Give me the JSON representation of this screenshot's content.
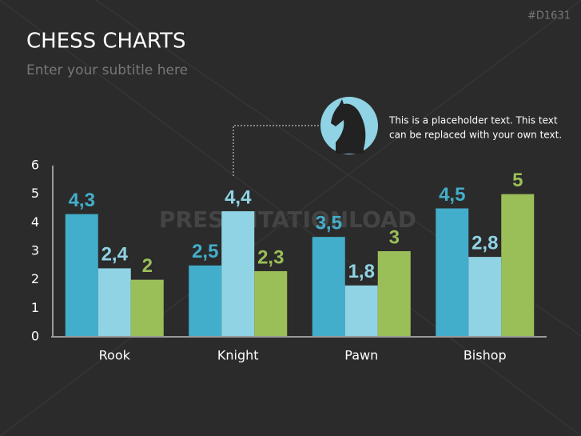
{
  "slide_code": "#D1631",
  "watermark": "PRESENTATIONLOAD",
  "chart_data": {
    "type": "bar",
    "title": "CHESS CHARTS",
    "subtitle": "Enter your subtitle here",
    "annotation": [
      "This is a placeholder text. This text",
      "can be replaced with your own text."
    ],
    "categories": [
      "Rook",
      "Knight",
      "Pawn",
      "Bishop"
    ],
    "series": [
      {
        "color": "#43aecb",
        "values": [
          4.3,
          2.5,
          3.5,
          4.5
        ],
        "value_labels": [
          "4,3",
          "2,5",
          "3,5",
          "4,5"
        ]
      },
      {
        "color": "#8fd3e4",
        "values": [
          2.4,
          4.4,
          1.8,
          2.8
        ],
        "value_labels": [
          "2,4",
          "4,4",
          "1,8",
          "2,8"
        ]
      },
      {
        "color": "#9bbf58",
        "values": [
          2,
          2.3,
          3,
          5
        ],
        "value_labels": [
          "2",
          "2,3",
          "3",
          "5"
        ]
      }
    ],
    "ylim": [
      0,
      6
    ],
    "yticks": [
      0,
      1,
      2,
      3,
      4,
      5,
      6
    ],
    "grid": false
  }
}
